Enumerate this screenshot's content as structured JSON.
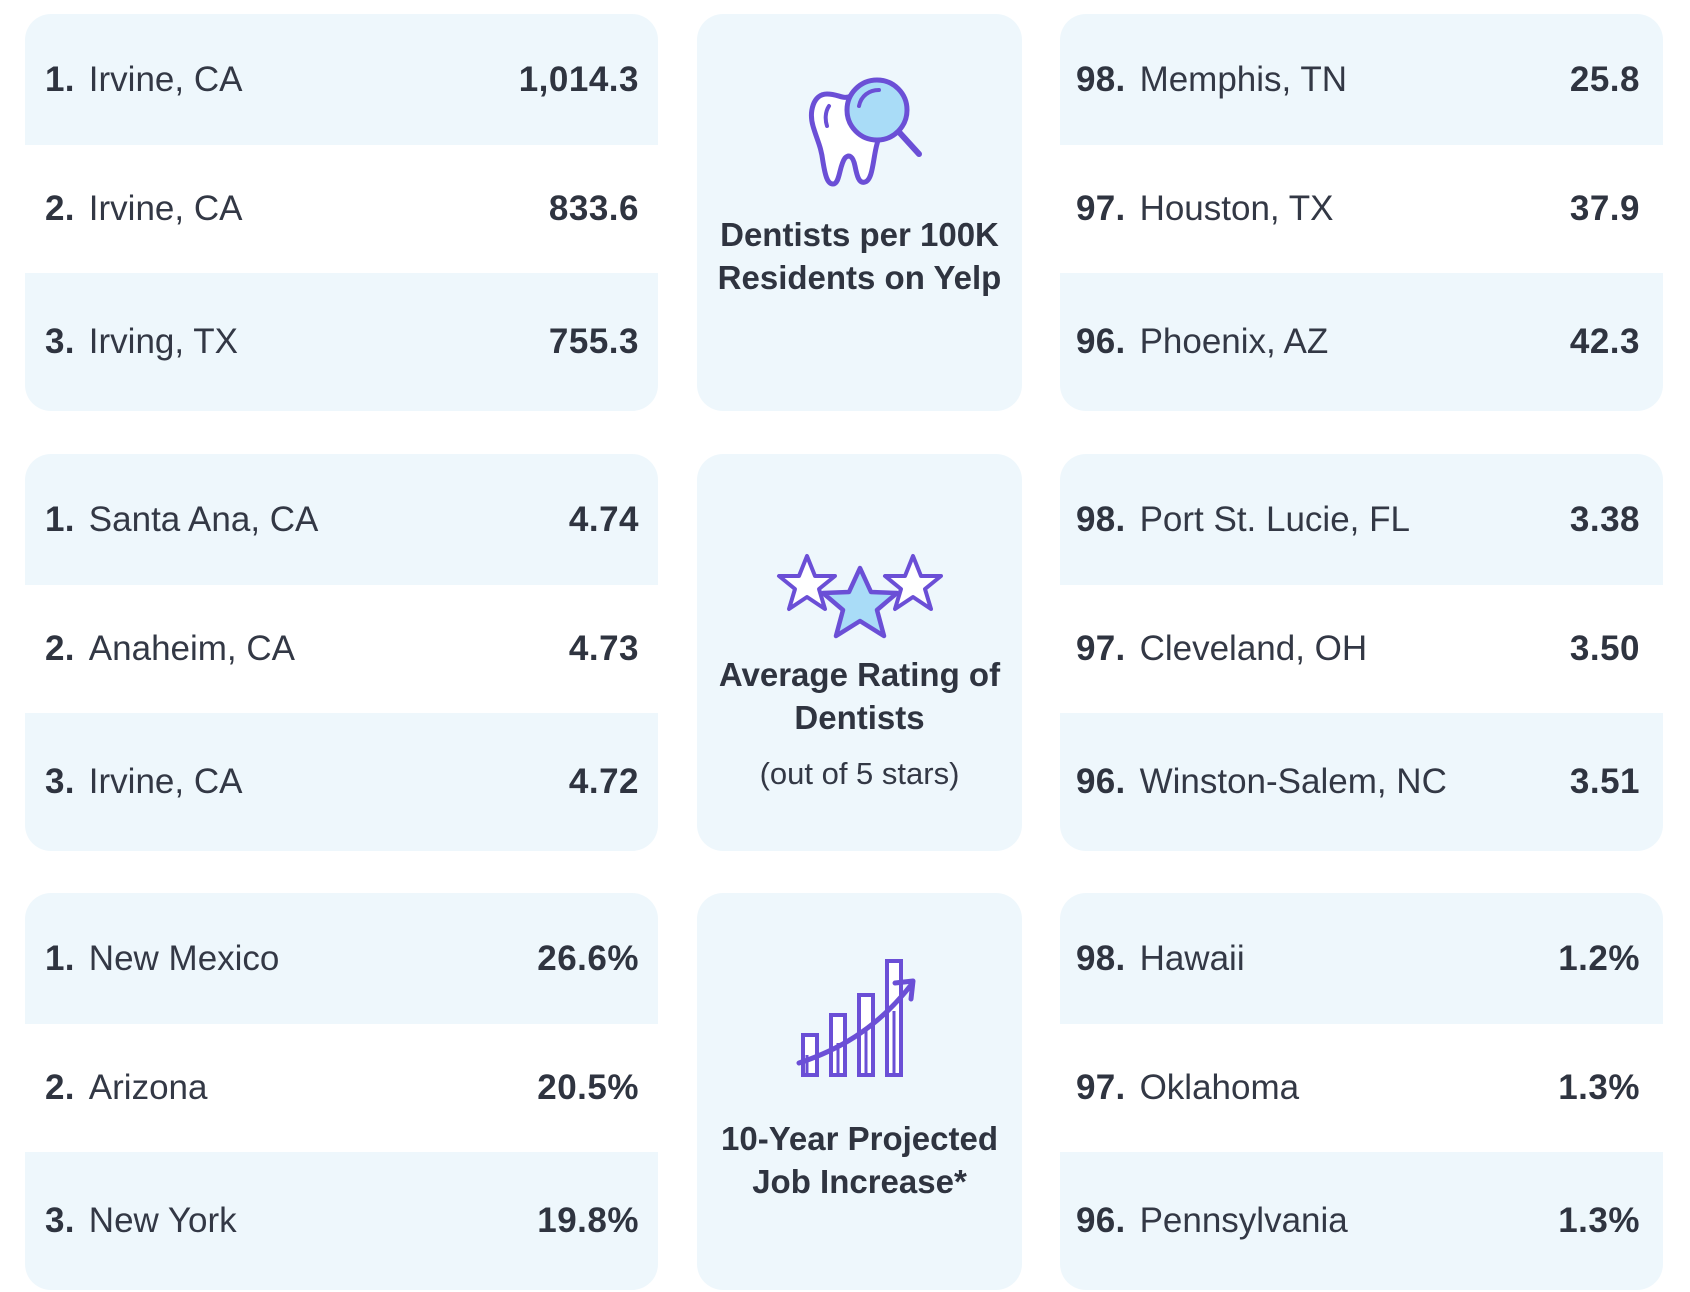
{
  "sections": [
    {
      "title": "Dentists per 100K Residents on Yelp",
      "subtitle": "",
      "icon": "tooth-magnifier-icon",
      "top": [
        {
          "rank": "1.",
          "name": "Irvine, CA",
          "value": "1,014.3"
        },
        {
          "rank": "2.",
          "name": "Irvine, CA",
          "value": "833.6"
        },
        {
          "rank": "3.",
          "name": "Irving, TX",
          "value": "755.3"
        }
      ],
      "bottom": [
        {
          "rank": "98.",
          "name": "Memphis, TN",
          "value": "25.8"
        },
        {
          "rank": "97.",
          "name": "Houston, TX",
          "value": "37.9"
        },
        {
          "rank": "96.",
          "name": "Phoenix, AZ",
          "value": "42.3"
        }
      ]
    },
    {
      "title": "Average Rating of Dentists",
      "subtitle": "(out of 5 stars)",
      "icon": "three-stars-icon",
      "top": [
        {
          "rank": "1.",
          "name": "Santa Ana, CA",
          "value": "4.74"
        },
        {
          "rank": "2.",
          "name": "Anaheim, CA",
          "value": "4.73"
        },
        {
          "rank": "3.",
          "name": "Irvine, CA",
          "value": "4.72"
        }
      ],
      "bottom": [
        {
          "rank": "98.",
          "name": "Port St. Lucie, FL",
          "value": "3.38"
        },
        {
          "rank": "97.",
          "name": "Cleveland, OH",
          "value": "3.50"
        },
        {
          "rank": "96.",
          "name": "Winston-Salem, NC",
          "value": "3.51"
        }
      ]
    },
    {
      "title": "10-Year Projected Job Increase*",
      "subtitle": "",
      "icon": "growth-chart-icon",
      "top": [
        {
          "rank": "1.",
          "name": "New Mexico",
          "value": "26.6%"
        },
        {
          "rank": "2.",
          "name": "Arizona",
          "value": "20.5%"
        },
        {
          "rank": "3.",
          "name": "New York",
          "value": "19.8%"
        }
      ],
      "bottom": [
        {
          "rank": "98.",
          "name": "Hawaii",
          "value": "1.2%"
        },
        {
          "rank": "97.",
          "name": "Oklahoma",
          "value": "1.3%"
        },
        {
          "rank": "96.",
          "name": "Pennsylvania",
          "value": "1.3%"
        }
      ]
    }
  ],
  "colors": {
    "row_tint": "#eef7fc",
    "panel": "#eef7fc",
    "icon_stroke": "#6b4fd6",
    "icon_fill": "#a9dcf7",
    "text": "#2f3440"
  }
}
